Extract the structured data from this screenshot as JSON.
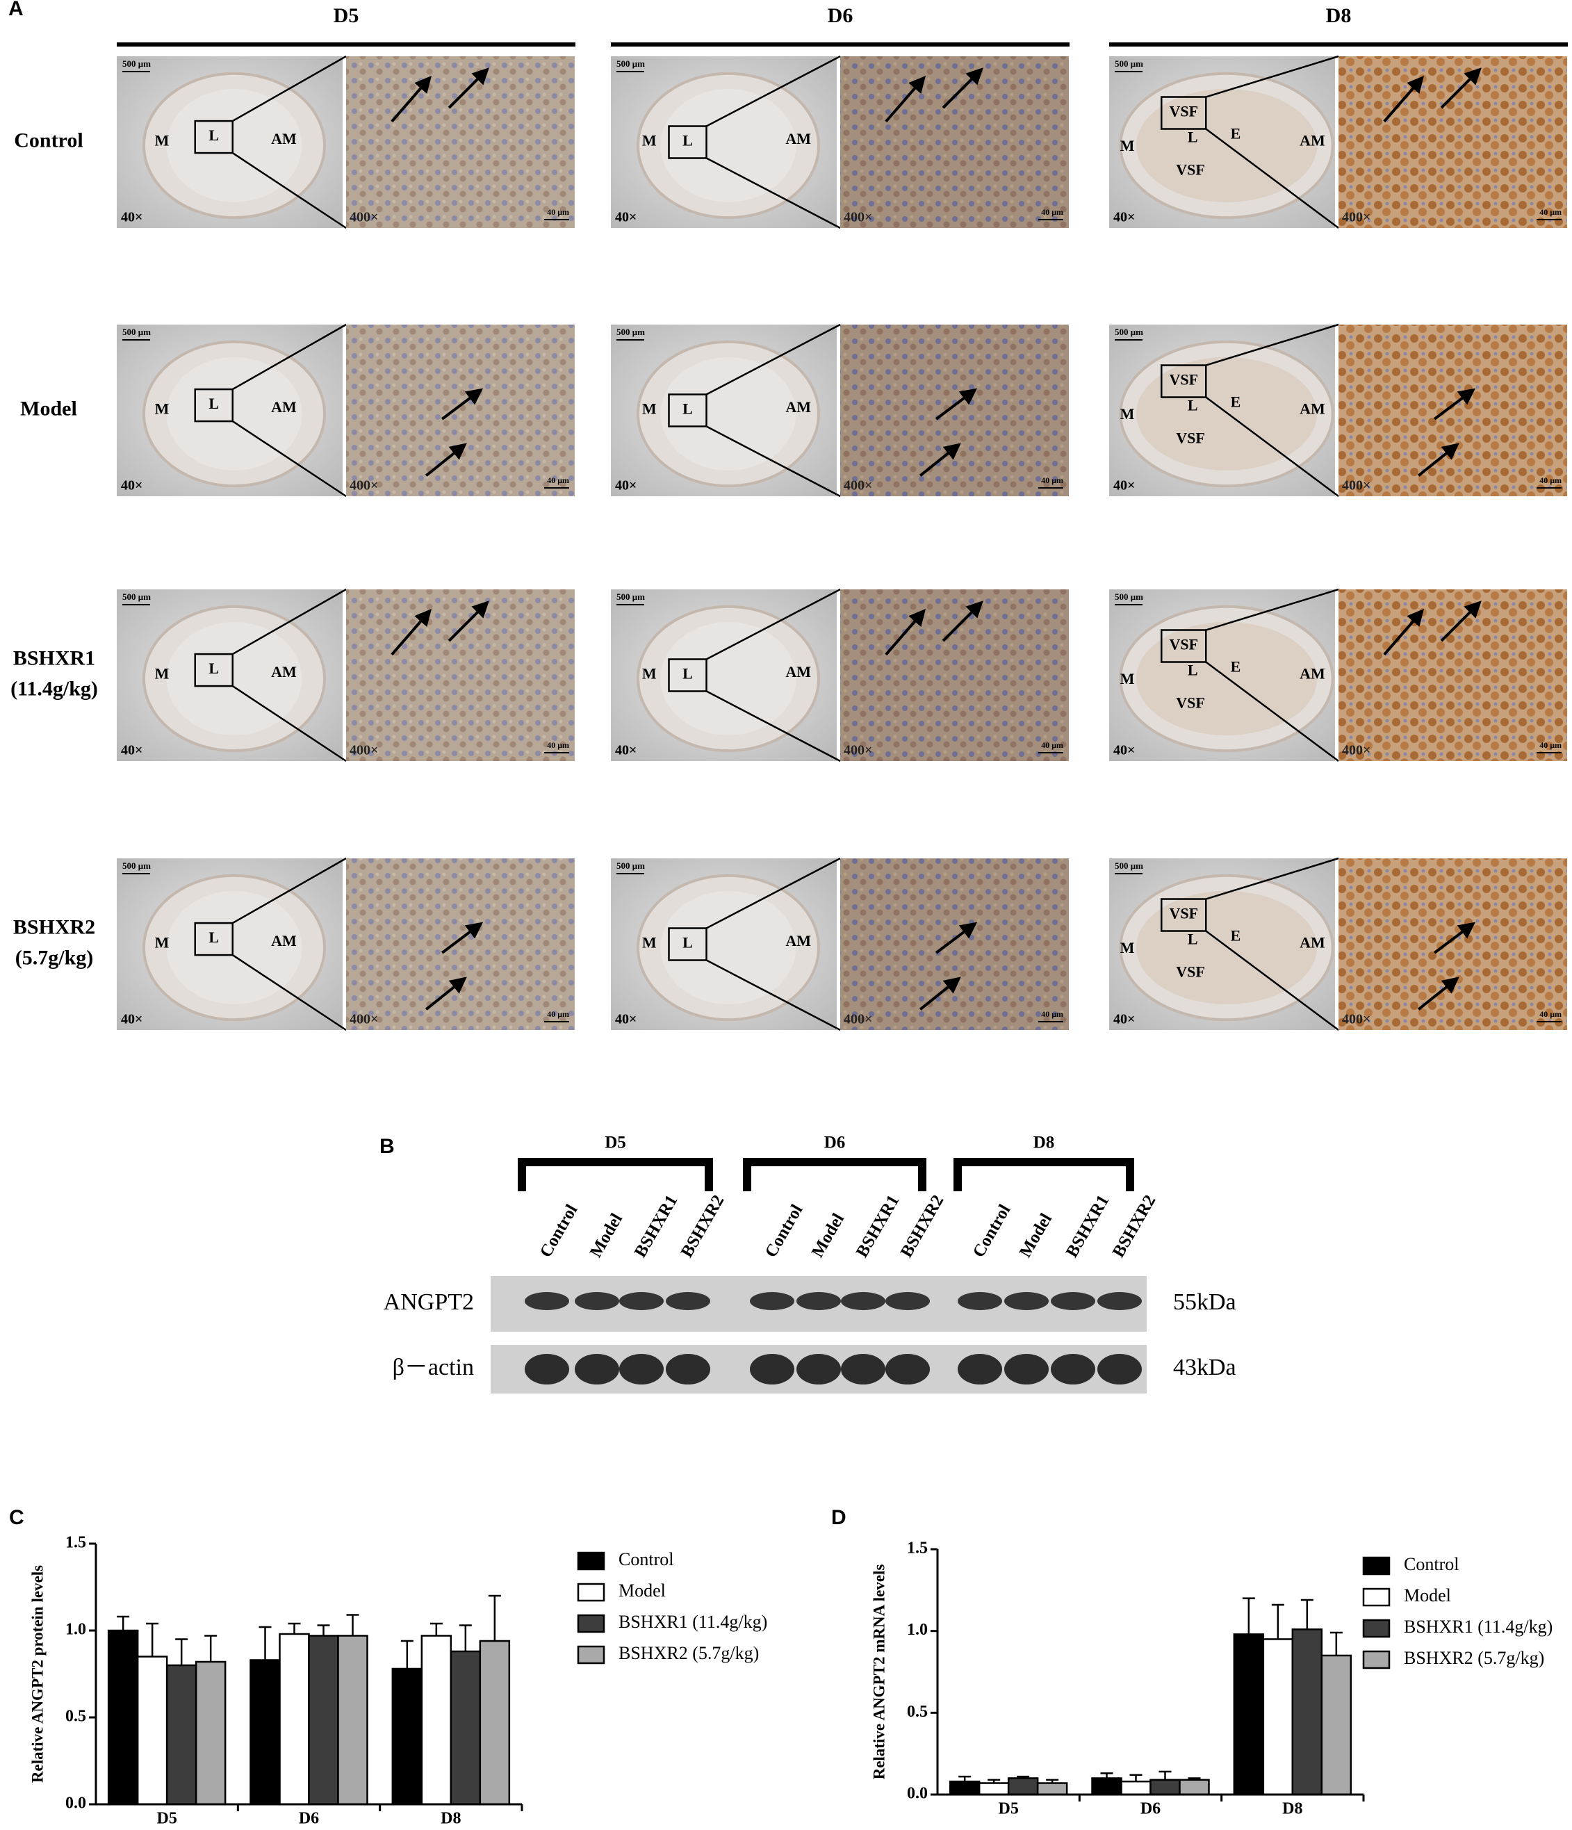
{
  "panel_a": {
    "label": "A",
    "columns": [
      {
        "day": "D5",
        "regions": [
          "M",
          "L",
          "AM"
        ]
      },
      {
        "day": "D6",
        "regions": [
          "M",
          "L",
          "AM"
        ]
      },
      {
        "day": "D8",
        "regions": [
          "VSF",
          "M",
          "L",
          "E",
          "AM",
          "VSF"
        ]
      }
    ],
    "rows": [
      {
        "name": "Control"
      },
      {
        "name": "Model"
      },
      {
        "name": "BSHXR1",
        "dose": "(11.4g/kg)"
      },
      {
        "name": "BSHXR2",
        "dose": "(5.7g/kg)"
      }
    ],
    "low_magnification": "40×",
    "high_magnification": "400×",
    "low_scale_bar": "500 μm",
    "high_scale_bar": "40 μm"
  },
  "panel_b": {
    "label": "B",
    "groups": [
      "D5",
      "D6",
      "D8"
    ],
    "lanes": [
      "Control",
      "Model",
      "BSHXR1",
      "BSHXR2"
    ],
    "bands": [
      {
        "name": "ANGPT2",
        "size": "55kDa"
      },
      {
        "name": "β－actin",
        "size": "43kDa"
      }
    ]
  },
  "chart_data": [
    {
      "type": "bar",
      "label": "C",
      "y_label": "Relative ANGPT2 protein levels",
      "categories": [
        "D5",
        "D6",
        "D8"
      ],
      "ylim": [
        0,
        1.5
      ],
      "yticks": [
        {
          "value": 0,
          "label": "0.0"
        },
        {
          "value": 0.5,
          "label": "0.5"
        },
        {
          "value": 1,
          "label": "1.0"
        },
        {
          "value": 1.5,
          "label": "1.5"
        }
      ],
      "series": [
        {
          "name": "Control",
          "color": "#000000",
          "values": [
            1.0,
            0.83,
            0.78
          ],
          "errors": [
            0.08,
            0.19,
            0.16
          ]
        },
        {
          "name": "Model",
          "color": "#ffffff",
          "values": [
            0.85,
            0.98,
            0.97
          ],
          "errors": [
            0.19,
            0.06,
            0.07
          ]
        },
        {
          "name": "BSHXR1 (11.4g/kg)",
          "color": "#3d3d3d",
          "values": [
            0.8,
            0.97,
            0.88
          ],
          "errors": [
            0.15,
            0.06,
            0.15
          ]
        },
        {
          "name": "BSHXR2 (5.7g/kg)",
          "color": "#a9a9a9",
          "values": [
            0.82,
            0.97,
            0.94
          ],
          "errors": [
            0.15,
            0.12,
            0.26
          ]
        }
      ]
    },
    {
      "type": "bar",
      "label": "D",
      "y_label": "Relative ANGPT2 mRNA levels",
      "categories": [
        "D5",
        "D6",
        "D8"
      ],
      "ylim": [
        0,
        1.5
      ],
      "yticks": [
        {
          "value": 0,
          "label": "0.0"
        },
        {
          "value": 0.5,
          "label": "0.5"
        },
        {
          "value": 1,
          "label": "1.0"
        },
        {
          "value": 1.5,
          "label": "1.5"
        }
      ],
      "series": [
        {
          "name": "Control",
          "color": "#000000",
          "values": [
            0.08,
            0.1,
            0.98
          ],
          "errors": [
            0.03,
            0.03,
            0.22
          ]
        },
        {
          "name": "Model",
          "color": "#ffffff",
          "values": [
            0.07,
            0.08,
            0.95
          ],
          "errors": [
            0.02,
            0.04,
            0.21
          ]
        },
        {
          "name": "BSHXR1 (11.4g/kg)",
          "color": "#3d3d3d",
          "values": [
            0.1,
            0.09,
            1.01
          ],
          "errors": [
            0.01,
            0.05,
            0.18
          ]
        },
        {
          "name": "BSHXR2 (5.7g/kg)",
          "color": "#a9a9a9",
          "values": [
            0.07,
            0.09,
            0.85
          ],
          "errors": [
            0.02,
            0.01,
            0.14
          ]
        }
      ]
    }
  ]
}
